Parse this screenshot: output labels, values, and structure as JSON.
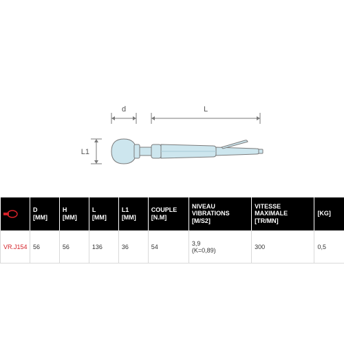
{
  "diagram": {
    "labels": {
      "d": "d",
      "L": "L",
      "L1": "L1"
    },
    "fill_color": "#cde6ee",
    "stroke_color": "#7a7a7a",
    "dim_line_color": "#7a7a7a",
    "text_color": "#555555"
  },
  "table": {
    "header_bg": "#000000",
    "header_fg": "#ffffff",
    "row_bg": "#ffffff",
    "border_color": "#d9d9d9",
    "product_id_color": "#d42027",
    "brand_icon_color": "#d42027",
    "columns": [
      {
        "key": "brand",
        "label": "",
        "width": 8
      },
      {
        "key": "d",
        "label": "D\n[MM]",
        "width": 8
      },
      {
        "key": "h",
        "label": "H\n[MM]",
        "width": 8
      },
      {
        "key": "l",
        "label": "L\n[MM]",
        "width": 8
      },
      {
        "key": "l1",
        "label": "L1\n[MM]",
        "width": 8
      },
      {
        "key": "couple",
        "label": "COUPLE\n[N.M]",
        "width": 11
      },
      {
        "key": "vib",
        "label": "NIVEAU\nVIBRATIONS\n[M/S2]",
        "width": 17
      },
      {
        "key": "vmax",
        "label": "VITESSE\nMAXIMALE\n[TR/MN]",
        "width": 17
      },
      {
        "key": "kg",
        "label": "[KG]",
        "width": 8
      }
    ],
    "rows": [
      {
        "product_id": "VR.J154",
        "d": "56",
        "h": "56",
        "l": "136",
        "l1": "36",
        "couple": "54",
        "vib": "3,9\n(K=0,89)",
        "vmax": "300",
        "kg": "0,5"
      }
    ]
  }
}
